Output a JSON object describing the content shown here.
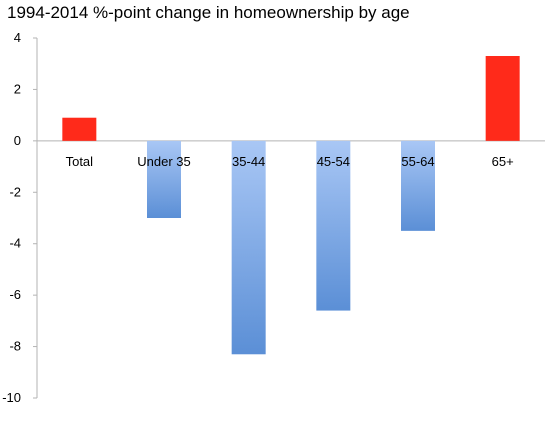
{
  "title": "1994-2014 %-point change in homeownership by age",
  "chart_data": {
    "type": "bar",
    "title": "1994-2014 %-point change in homeownership by age",
    "xlabel": "",
    "ylabel": "",
    "categories": [
      "Total",
      "Under 35",
      "35-44",
      "45-54",
      "55-64",
      "65+"
    ],
    "values": [
      0.9,
      -3.0,
      -8.3,
      -6.6,
      -3.5,
      3.3
    ],
    "ylim": [
      -10,
      4
    ],
    "yticks": [
      4,
      2,
      0,
      -2,
      -4,
      -6,
      -8,
      -10
    ],
    "yticklabels": [
      "4",
      "2",
      "0",
      "-2",
      "-4",
      "-6",
      "-8",
      "-10"
    ],
    "grid": false,
    "legend": "none",
    "colors": {
      "positive": "#ff2a1a",
      "negative_top": "#a9c7f5",
      "negative_bottom": "#5b8fd6",
      "axis": "#b3b3b3"
    }
  }
}
